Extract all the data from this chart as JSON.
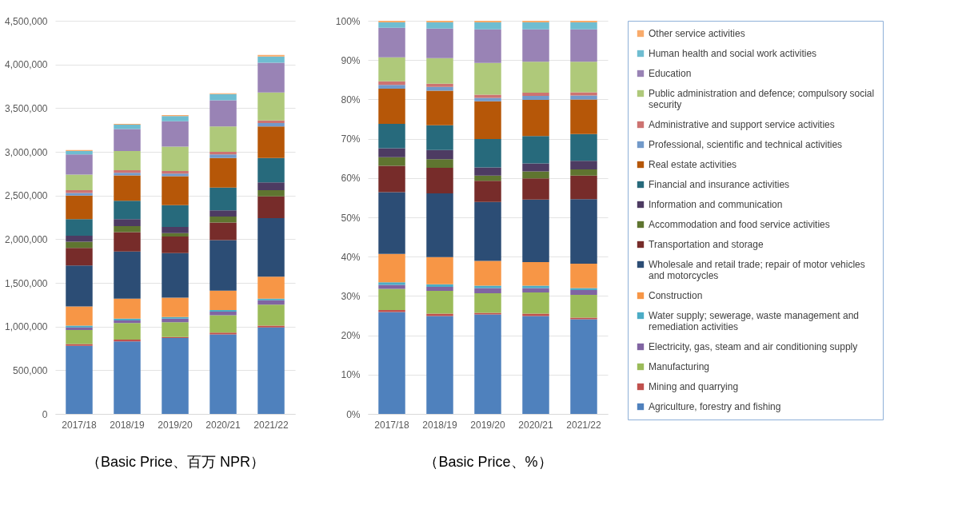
{
  "chart_data": [
    {
      "type": "bar",
      "stacked": true,
      "xlabel": "（Basic Price、百万 NPR）",
      "categories": [
        "2017/18",
        "2018/19",
        "2019/20",
        "2020/21",
        "2021/22"
      ],
      "ylim": [
        0,
        4500000
      ],
      "yticks": [
        {
          "value": 0,
          "label": "0"
        },
        {
          "value": 500000,
          "label": "500,000"
        },
        {
          "value": 1000000,
          "label": "1,000,000"
        },
        {
          "value": 1500000,
          "label": "1,500,000"
        },
        {
          "value": 2000000,
          "label": "2,000,000"
        },
        {
          "value": 2500000,
          "label": "2,500,000"
        },
        {
          "value": 3000000,
          "label": "3,000,000"
        },
        {
          "value": 3500000,
          "label": "3,500,000"
        },
        {
          "value": 4000000,
          "label": "4,000,000"
        },
        {
          "value": 4500000,
          "label": "4,500,000"
        }
      ],
      "grid": "y",
      "series": [
        {
          "color": "#4f81bd",
          "values": [
            780000,
            830000,
            870000,
            910000,
            990000
          ]
        },
        {
          "color": "#c0504d",
          "values": [
            20000,
            20000,
            10000,
            20000,
            20000
          ]
        },
        {
          "color": "#9bbb59",
          "values": [
            160000,
            190000,
            170000,
            200000,
            240000
          ]
        },
        {
          "color": "#8064a2",
          "values": [
            30000,
            30000,
            40000,
            40000,
            50000
          ]
        },
        {
          "color": "#4bacc6",
          "values": [
            20000,
            20000,
            20000,
            20000,
            20000
          ]
        },
        {
          "color": "#f79646",
          "values": [
            220000,
            230000,
            220000,
            220000,
            250000
          ]
        },
        {
          "color": "#2c4d75",
          "values": [
            470000,
            540000,
            510000,
            580000,
            670000
          ]
        },
        {
          "color": "#772c2a",
          "values": [
            200000,
            220000,
            190000,
            200000,
            250000
          ]
        },
        {
          "color": "#5f7530",
          "values": [
            70000,
            70000,
            40000,
            70000,
            70000
          ]
        },
        {
          "color": "#4d3b62",
          "values": [
            70000,
            80000,
            70000,
            70000,
            90000
          ]
        },
        {
          "color": "#276a7c",
          "values": [
            190000,
            210000,
            250000,
            260000,
            280000
          ]
        },
        {
          "color": "#b65708",
          "values": [
            270000,
            290000,
            330000,
            340000,
            360000
          ]
        },
        {
          "color": "#729aca",
          "values": [
            30000,
            30000,
            30000,
            40000,
            40000
          ]
        },
        {
          "color": "#cd7371",
          "values": [
            30000,
            30000,
            30000,
            30000,
            30000
          ]
        },
        {
          "color": "#afc97a",
          "values": [
            180000,
            220000,
            280000,
            290000,
            320000
          ]
        },
        {
          "color": "#9983b5",
          "values": [
            230000,
            250000,
            290000,
            300000,
            340000
          ]
        },
        {
          "color": "#6fbdd1",
          "values": [
            40000,
            50000,
            60000,
            70000,
            70000
          ]
        },
        {
          "color": "#f9ab6b",
          "values": [
            10000,
            10000,
            10000,
            10000,
            20000
          ]
        }
      ]
    },
    {
      "type": "bar",
      "stacked": true,
      "xlabel": "（Basic Price、%）",
      "categories": [
        "2017/18",
        "2018/19",
        "2019/20",
        "2020/21",
        "2021/22"
      ],
      "ylim": [
        0,
        100
      ],
      "yticks": [
        {
          "value": 0,
          "label": "0%"
        },
        {
          "value": 10,
          "label": "10%"
        },
        {
          "value": 20,
          "label": "20%"
        },
        {
          "value": 30,
          "label": "30%"
        },
        {
          "value": 40,
          "label": "40%"
        },
        {
          "value": 50,
          "label": "50%"
        },
        {
          "value": 60,
          "label": "60%"
        },
        {
          "value": 70,
          "label": "70%"
        },
        {
          "value": 80,
          "label": "80%"
        },
        {
          "value": 90,
          "label": "90%"
        },
        {
          "value": 100,
          "label": "100%"
        }
      ],
      "grid": "y",
      "legend": "right",
      "series": [
        {
          "name": "Agriculture, forestry and fishing",
          "color": "#4f81bd",
          "values": [
            25.9,
            24.9,
            25.3,
            24.9,
            24.1
          ]
        },
        {
          "name": "Mining and quarrying",
          "color": "#c0504d",
          "values": [
            0.5,
            0.6,
            0.4,
            0.6,
            0.4
          ]
        },
        {
          "name": "Manufacturing",
          "color": "#9bbb59",
          "values": [
            5.4,
            5.8,
            5.0,
            5.4,
            5.8
          ]
        },
        {
          "name": "Electricity, gas, steam and air conditioning supply",
          "color": "#8064a2",
          "values": [
            1.0,
            1.0,
            1.3,
            1.1,
            1.2
          ]
        },
        {
          "name": "Water supply; sewerage, waste management and remediation activities",
          "color": "#4bacc6",
          "values": [
            0.7,
            0.7,
            0.6,
            0.6,
            0.5
          ]
        },
        {
          "name": "Construction",
          "color": "#f79646",
          "values": [
            7.2,
            6.9,
            6.3,
            6.0,
            6.2
          ]
        },
        {
          "name": "Wholesale and retail trade; repair of motor vehicles and motorcycles",
          "color": "#2c4d75",
          "values": [
            15.7,
            16.2,
            15.0,
            15.9,
            16.4
          ]
        },
        {
          "name": "Transportation and storage",
          "color": "#772c2a",
          "values": [
            6.7,
            6.5,
            5.4,
            5.4,
            6.0
          ]
        },
        {
          "name": "Accommodation and food service activities",
          "color": "#5f7530",
          "values": [
            2.2,
            2.2,
            1.3,
            1.8,
            1.6
          ]
        },
        {
          "name": "Information and communication",
          "color": "#4d3b62",
          "values": [
            2.3,
            2.3,
            2.1,
            2.0,
            2.2
          ]
        },
        {
          "name": "Financial and insurance activities",
          "color": "#276a7c",
          "values": [
            6.2,
            6.3,
            7.2,
            7.0,
            6.8
          ]
        },
        {
          "name": "Real estate activities",
          "color": "#b65708",
          "values": [
            8.9,
            8.8,
            9.6,
            9.2,
            8.8
          ]
        },
        {
          "name": "Professional, scientific and technical activities",
          "color": "#729aca",
          "values": [
            1.0,
            1.0,
            0.9,
            1.0,
            1.0
          ]
        },
        {
          "name": "Administrative and support service activities",
          "color": "#cd7371",
          "values": [
            0.9,
            0.8,
            0.8,
            0.8,
            0.8
          ]
        },
        {
          "name": "Public administration and defence; compulsory social security",
          "color": "#afc97a",
          "values": [
            6.1,
            6.5,
            8.1,
            7.9,
            7.8
          ]
        },
        {
          "name": "Education",
          "color": "#9983b5",
          "values": [
            7.5,
            7.5,
            8.5,
            8.2,
            8.2
          ]
        },
        {
          "name": "Human health and social work activities",
          "color": "#6fbdd1",
          "values": [
            1.4,
            1.6,
            1.8,
            1.8,
            1.8
          ]
        },
        {
          "name": "Other service activities",
          "color": "#f9ab6b",
          "values": [
            0.4,
            0.4,
            0.4,
            0.4,
            0.4
          ]
        }
      ]
    }
  ]
}
